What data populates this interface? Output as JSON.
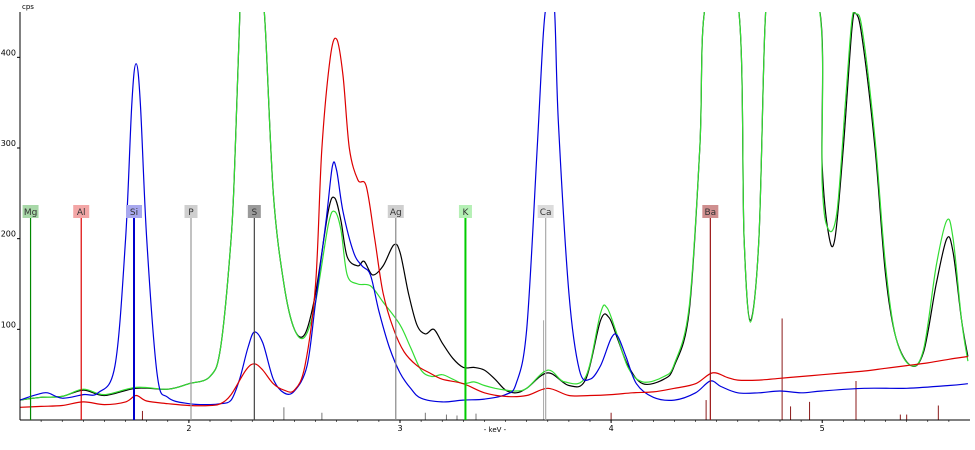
{
  "chart_data": {
    "type": "line",
    "title": "",
    "ylabel": "cps",
    "xlabel": "- keV -",
    "xlim": [
      1.2,
      5.7
    ],
    "ylim": [
      0,
      450
    ],
    "x_ticks": [
      2,
      3,
      4,
      5
    ],
    "x_tick_labels": [
      "2",
      "3",
      "4",
      "5"
    ],
    "y_ticks": [
      100,
      200,
      300,
      400
    ],
    "y_tick_labels": [
      "100",
      "200",
      "300",
      "400"
    ],
    "grid": false,
    "legend": "none",
    "series": [
      {
        "color": "#000000",
        "points": [
          [
            1.2,
            22
          ],
          [
            1.3,
            25
          ],
          [
            1.4,
            26
          ],
          [
            1.5,
            33
          ],
          [
            1.6,
            27
          ],
          [
            1.75,
            35
          ],
          [
            1.9,
            34
          ],
          [
            2.0,
            40
          ],
          [
            2.1,
            48
          ],
          [
            2.15,
            80
          ],
          [
            2.2,
            200
          ],
          [
            2.22,
            300
          ],
          [
            2.24,
            440
          ],
          [
            2.25,
            460
          ],
          [
            2.34,
            460
          ],
          [
            2.36,
            440
          ],
          [
            2.4,
            250
          ],
          [
            2.45,
            150
          ],
          [
            2.5,
            100
          ],
          [
            2.55,
            95
          ],
          [
            2.6,
            140
          ],
          [
            2.66,
            230
          ],
          [
            2.69,
            245
          ],
          [
            2.72,
            220
          ],
          [
            2.75,
            180
          ],
          [
            2.8,
            170
          ],
          [
            2.83,
            175
          ],
          [
            2.87,
            160
          ],
          [
            2.92,
            170
          ],
          [
            2.97,
            193
          ],
          [
            3.0,
            185
          ],
          [
            3.04,
            140
          ],
          [
            3.08,
            105
          ],
          [
            3.12,
            95
          ],
          [
            3.16,
            100
          ],
          [
            3.2,
            85
          ],
          [
            3.25,
            68
          ],
          [
            3.3,
            58
          ],
          [
            3.35,
            58
          ],
          [
            3.4,
            55
          ],
          [
            3.45,
            45
          ],
          [
            3.5,
            33
          ],
          [
            3.55,
            30
          ],
          [
            3.6,
            35
          ],
          [
            3.7,
            52
          ],
          [
            3.8,
            38
          ],
          [
            3.88,
            45
          ],
          [
            3.95,
            110
          ],
          [
            3.99,
            113
          ],
          [
            4.03,
            90
          ],
          [
            4.08,
            60
          ],
          [
            4.15,
            40
          ],
          [
            4.25,
            45
          ],
          [
            4.3,
            60
          ],
          [
            4.37,
            120
          ],
          [
            4.42,
            300
          ],
          [
            4.45,
            460
          ],
          [
            4.6,
            460
          ],
          [
            4.63,
            200
          ],
          [
            4.66,
            110
          ],
          [
            4.7,
            200
          ],
          [
            4.73,
            440
          ],
          [
            4.76,
            460
          ],
          [
            4.98,
            460
          ],
          [
            5.0,
            280
          ],
          [
            5.03,
            205
          ],
          [
            5.06,
            200
          ],
          [
            5.1,
            300
          ],
          [
            5.14,
            430
          ],
          [
            5.16,
            448
          ],
          [
            5.19,
            420
          ],
          [
            5.25,
            300
          ],
          [
            5.3,
            160
          ],
          [
            5.35,
            90
          ],
          [
            5.42,
            60
          ],
          [
            5.48,
            75
          ],
          [
            5.54,
            150
          ],
          [
            5.59,
            200
          ],
          [
            5.62,
            185
          ],
          [
            5.66,
            110
          ],
          [
            5.69,
            70
          ]
        ]
      },
      {
        "color": "#33dd33",
        "points": [
          [
            1.2,
            22
          ],
          [
            1.3,
            25
          ],
          [
            1.4,
            26
          ],
          [
            1.5,
            34
          ],
          [
            1.6,
            28
          ],
          [
            1.75,
            36
          ],
          [
            1.9,
            34
          ],
          [
            2.0,
            40
          ],
          [
            2.1,
            48
          ],
          [
            2.15,
            80
          ],
          [
            2.2,
            200
          ],
          [
            2.22,
            300
          ],
          [
            2.24,
            440
          ],
          [
            2.25,
            460
          ],
          [
            2.34,
            460
          ],
          [
            2.36,
            440
          ],
          [
            2.4,
            250
          ],
          [
            2.45,
            150
          ],
          [
            2.5,
            100
          ],
          [
            2.55,
            92
          ],
          [
            2.6,
            130
          ],
          [
            2.66,
            215
          ],
          [
            2.69,
            230
          ],
          [
            2.72,
            210
          ],
          [
            2.75,
            160
          ],
          [
            2.8,
            150
          ],
          [
            2.86,
            148
          ],
          [
            2.92,
            130
          ],
          [
            3.0,
            105
          ],
          [
            3.05,
            80
          ],
          [
            3.1,
            55
          ],
          [
            3.15,
            48
          ],
          [
            3.2,
            50
          ],
          [
            3.25,
            45
          ],
          [
            3.3,
            40
          ],
          [
            3.35,
            42
          ],
          [
            3.4,
            38
          ],
          [
            3.45,
            35
          ],
          [
            3.5,
            33
          ],
          [
            3.55,
            32
          ],
          [
            3.6,
            35
          ],
          [
            3.7,
            55
          ],
          [
            3.78,
            42
          ],
          [
            3.88,
            48
          ],
          [
            3.95,
            118
          ],
          [
            3.98,
            124
          ],
          [
            4.02,
            100
          ],
          [
            4.08,
            58
          ],
          [
            4.15,
            42
          ],
          [
            4.25,
            48
          ],
          [
            4.3,
            62
          ],
          [
            4.37,
            125
          ],
          [
            4.42,
            300
          ],
          [
            4.45,
            460
          ],
          [
            4.6,
            460
          ],
          [
            4.63,
            200
          ],
          [
            4.66,
            108
          ],
          [
            4.7,
            200
          ],
          [
            4.73,
            440
          ],
          [
            4.76,
            460
          ],
          [
            4.98,
            460
          ],
          [
            5.0,
            260
          ],
          [
            5.03,
            210
          ],
          [
            5.07,
            230
          ],
          [
            5.11,
            350
          ],
          [
            5.14,
            440
          ],
          [
            5.16,
            448
          ],
          [
            5.19,
            430
          ],
          [
            5.25,
            310
          ],
          [
            5.3,
            170
          ],
          [
            5.35,
            90
          ],
          [
            5.42,
            60
          ],
          [
            5.48,
            78
          ],
          [
            5.54,
            170
          ],
          [
            5.59,
            220
          ],
          [
            5.62,
            200
          ],
          [
            5.66,
            110
          ],
          [
            5.69,
            65
          ]
        ]
      },
      {
        "color": "#0000dd",
        "points": [
          [
            1.2,
            22
          ],
          [
            1.28,
            28
          ],
          [
            1.33,
            30
          ],
          [
            1.4,
            24
          ],
          [
            1.5,
            28
          ],
          [
            1.57,
            30
          ],
          [
            1.65,
            60
          ],
          [
            1.7,
            200
          ],
          [
            1.73,
            350
          ],
          [
            1.75,
            393
          ],
          [
            1.77,
            350
          ],
          [
            1.8,
            200
          ],
          [
            1.85,
            50
          ],
          [
            1.9,
            25
          ],
          [
            2.0,
            18
          ],
          [
            2.1,
            17
          ],
          [
            2.15,
            18
          ],
          [
            2.2,
            22
          ],
          [
            2.24,
            45
          ],
          [
            2.28,
            80
          ],
          [
            2.31,
            97
          ],
          [
            2.35,
            85
          ],
          [
            2.4,
            45
          ],
          [
            2.45,
            30
          ],
          [
            2.5,
            32
          ],
          [
            2.56,
            60
          ],
          [
            2.6,
            130
          ],
          [
            2.65,
            220
          ],
          [
            2.68,
            280
          ],
          [
            2.7,
            275
          ],
          [
            2.73,
            230
          ],
          [
            2.78,
            185
          ],
          [
            2.82,
            170
          ],
          [
            2.86,
            160
          ],
          [
            2.9,
            120
          ],
          [
            2.95,
            80
          ],
          [
            3.0,
            52
          ],
          [
            3.05,
            35
          ],
          [
            3.1,
            24
          ],
          [
            3.2,
            20
          ],
          [
            3.3,
            22
          ],
          [
            3.4,
            23
          ],
          [
            3.5,
            28
          ],
          [
            3.55,
            40
          ],
          [
            3.6,
            100
          ],
          [
            3.65,
            300
          ],
          [
            3.68,
            430
          ],
          [
            3.7,
            460
          ],
          [
            3.73,
            460
          ],
          [
            3.75,
            330
          ],
          [
            3.8,
            140
          ],
          [
            3.85,
            55
          ],
          [
            3.9,
            45
          ],
          [
            3.95,
            60
          ],
          [
            4.0,
            90
          ],
          [
            4.03,
            93
          ],
          [
            4.07,
            70
          ],
          [
            4.12,
            40
          ],
          [
            4.2,
            25
          ],
          [
            4.3,
            22
          ],
          [
            4.4,
            30
          ],
          [
            4.47,
            43
          ],
          [
            4.52,
            37
          ],
          [
            4.6,
            30
          ],
          [
            4.7,
            30
          ],
          [
            4.8,
            32
          ],
          [
            4.9,
            30
          ],
          [
            5.0,
            32
          ],
          [
            5.2,
            35
          ],
          [
            5.4,
            35
          ],
          [
            5.6,
            38
          ],
          [
            5.69,
            40
          ]
        ]
      },
      {
        "color": "#dd0000",
        "points": [
          [
            1.2,
            14
          ],
          [
            1.3,
            15
          ],
          [
            1.4,
            16
          ],
          [
            1.5,
            20
          ],
          [
            1.6,
            17
          ],
          [
            1.7,
            20
          ],
          [
            1.75,
            27
          ],
          [
            1.8,
            21
          ],
          [
            1.9,
            18
          ],
          [
            2.0,
            16
          ],
          [
            2.1,
            16
          ],
          [
            2.15,
            18
          ],
          [
            2.2,
            28
          ],
          [
            2.27,
            55
          ],
          [
            2.31,
            62
          ],
          [
            2.35,
            55
          ],
          [
            2.4,
            40
          ],
          [
            2.45,
            33
          ],
          [
            2.5,
            33
          ],
          [
            2.55,
            60
          ],
          [
            2.6,
            150
          ],
          [
            2.63,
            300
          ],
          [
            2.67,
            400
          ],
          [
            2.7,
            420
          ],
          [
            2.73,
            380
          ],
          [
            2.76,
            300
          ],
          [
            2.8,
            265
          ],
          [
            2.84,
            258
          ],
          [
            2.88,
            200
          ],
          [
            2.92,
            140
          ],
          [
            2.97,
            100
          ],
          [
            3.02,
            75
          ],
          [
            3.08,
            60
          ],
          [
            3.14,
            52
          ],
          [
            3.2,
            45
          ],
          [
            3.3,
            40
          ],
          [
            3.4,
            30
          ],
          [
            3.5,
            26
          ],
          [
            3.6,
            27
          ],
          [
            3.7,
            35
          ],
          [
            3.8,
            27
          ],
          [
            3.9,
            27
          ],
          [
            4.0,
            28
          ],
          [
            4.1,
            30
          ],
          [
            4.2,
            31
          ],
          [
            4.3,
            35
          ],
          [
            4.4,
            40
          ],
          [
            4.48,
            52
          ],
          [
            4.55,
            47
          ],
          [
            4.6,
            44
          ],
          [
            4.7,
            44
          ],
          [
            4.8,
            46
          ],
          [
            4.9,
            48
          ],
          [
            5.0,
            50
          ],
          [
            5.1,
            52
          ],
          [
            5.2,
            54
          ],
          [
            5.3,
            57
          ],
          [
            5.4,
            60
          ],
          [
            5.5,
            63
          ],
          [
            5.6,
            67
          ],
          [
            5.69,
            70
          ]
        ]
      }
    ],
    "element_markers": [
      {
        "label": "Mg",
        "energy": 1.25,
        "color": "#008800",
        "box_color": "#a8d8a8"
      },
      {
        "label": "Al",
        "energy": 1.49,
        "color": "#dd0000",
        "box_color": "#f3a6a6"
      },
      {
        "label": "Si",
        "energy": 1.74,
        "color": "#0000cc",
        "box_color": "#a8a8ee"
      },
      {
        "label": "P",
        "energy": 2.01,
        "color": "#999999",
        "box_color": "#cfcfcf"
      },
      {
        "label": "S",
        "energy": 2.31,
        "color": "#444444",
        "box_color": "#9a9a9a"
      },
      {
        "label": "Ag",
        "energy": 2.98,
        "color": "#888888",
        "box_color": "#cfcfcf"
      },
      {
        "label": "K",
        "energy": 3.31,
        "color": "#00cc00",
        "box_color": "#b5f0b5"
      },
      {
        "label": "Ca",
        "energy": 3.69,
        "color": "#aaaaaa",
        "box_color": "#dcdcdc"
      },
      {
        "label": "Ba",
        "energy": 4.47,
        "color": "#991111",
        "box_color": "#cf8f8f"
      }
    ]
  },
  "colors": {
    "axis": "#000000",
    "background": "#ffffff",
    "dark_marker_lines": "#8b1a1a",
    "blue_marker_line": "#0000cc",
    "gray_marker_lines": "#aaaaaa",
    "gray_short_lines": "#777777"
  }
}
